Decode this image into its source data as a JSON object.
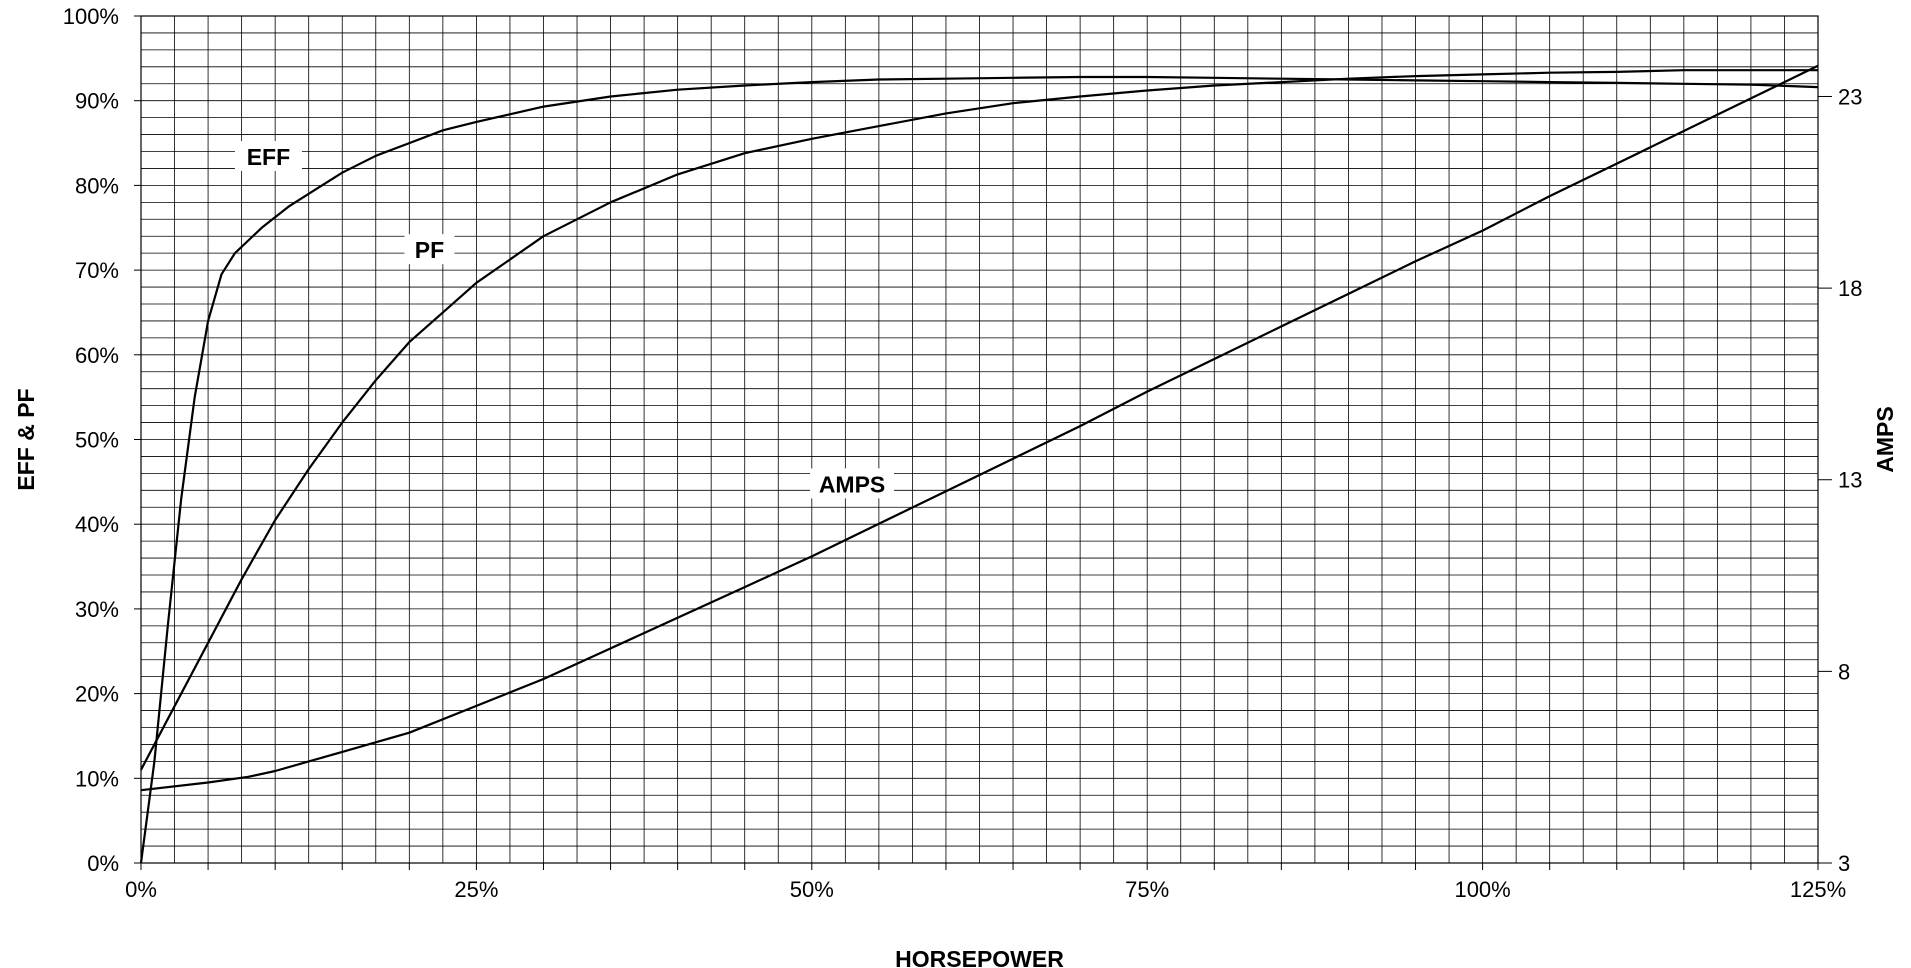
{
  "chart_data": {
    "type": "line",
    "xlabel": "HORSEPOWER",
    "ylabel_left": "EFF & PF",
    "ylabel_right": "AMPS",
    "x_ticks": [
      "0%",
      "25%",
      "50%",
      "75%",
      "100%",
      "125%"
    ],
    "y_left_ticks": [
      "0%",
      "10%",
      "20%",
      "30%",
      "40%",
      "50%",
      "60%",
      "70%",
      "80%",
      "90%",
      "100%"
    ],
    "y_right_ticks": [
      "3",
      "8",
      "13",
      "18",
      "23"
    ],
    "xlim": [
      0,
      125
    ],
    "ylim_left": [
      0,
      100
    ],
    "ylim_right": [
      3,
      25.1
    ],
    "grid": true,
    "series": [
      {
        "name": "EFF",
        "axis": "left",
        "label_at": [
          9.5,
          83
        ],
        "x": [
          0,
          1,
          2,
          3,
          4,
          5,
          6,
          7,
          8,
          9,
          11,
          13,
          15,
          17.5,
          20,
          22.5,
          25,
          30,
          35,
          40,
          45,
          50,
          55,
          60,
          65,
          70,
          75,
          80,
          85,
          90,
          95,
          100,
          105,
          110,
          115,
          120,
          125
        ],
        "values": [
          0,
          12,
          28,
          43,
          55,
          64,
          69.5,
          72,
          73.5,
          75,
          77.5,
          79.5,
          81.5,
          83.5,
          85,
          86.5,
          87.5,
          89.3,
          90.5,
          91.3,
          91.8,
          92.2,
          92.5,
          92.6,
          92.7,
          92.8,
          92.8,
          92.7,
          92.6,
          92.5,
          92.4,
          92.3,
          92.2,
          92.1,
          92.0,
          91.9,
          91.6
        ]
      },
      {
        "name": "PF",
        "axis": "left",
        "label_at": [
          21.5,
          72
        ],
        "x": [
          0,
          2.5,
          5,
          7.5,
          10,
          12.5,
          15,
          17.5,
          20,
          22.5,
          25,
          30,
          35,
          40,
          45,
          50,
          55,
          60,
          65,
          70,
          75,
          80,
          85,
          90,
          95,
          100,
          105,
          110,
          115,
          120,
          125
        ],
        "values": [
          11,
          18.5,
          26,
          33.5,
          40.5,
          46.5,
          52,
          57,
          61.5,
          65,
          68.5,
          74,
          78,
          81.3,
          83.8,
          85.5,
          87,
          88.5,
          89.7,
          90.5,
          91.2,
          91.8,
          92.2,
          92.6,
          92.9,
          93.1,
          93.3,
          93.4,
          93.6,
          93.6,
          93.6
        ]
      },
      {
        "name": "AMPS",
        "axis": "right",
        "label_at": [
          53,
          12.8
        ],
        "x": [
          0,
          5,
          8,
          10,
          15,
          20,
          25,
          30,
          35,
          40,
          45,
          50,
          55,
          60,
          65,
          70,
          75,
          80,
          85,
          90,
          95,
          100,
          105,
          110,
          115,
          120,
          125
        ],
        "values": [
          4.9,
          5.1,
          5.25,
          5.4,
          5.9,
          6.4,
          7.1,
          7.8,
          8.6,
          9.4,
          10.2,
          11.0,
          11.85,
          12.7,
          13.55,
          14.4,
          15.3,
          16.15,
          17.0,
          17.85,
          18.7,
          19.5,
          20.4,
          21.25,
          22.1,
          22.95,
          23.8
        ]
      }
    ]
  }
}
